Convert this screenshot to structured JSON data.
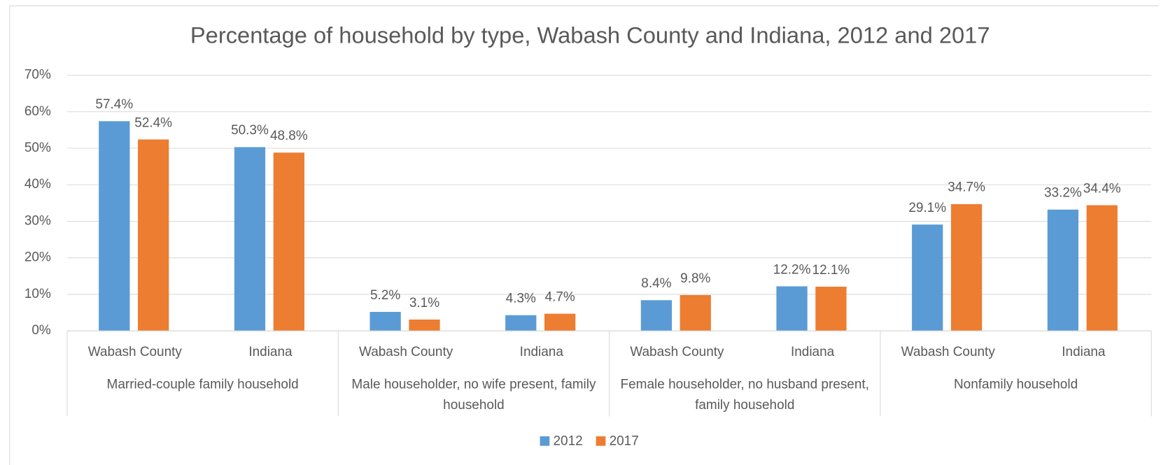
{
  "chart_data": {
    "type": "bar",
    "title": "Percentage of household by type, Wabash County and Indiana, 2012 and 2017",
    "categories": [
      "Wabash County",
      "Indiana",
      "Wabash County",
      "Indiana",
      "Wabash County",
      "Indiana",
      "Wabash County",
      "Indiana"
    ],
    "groups": [
      "Married-couple family household",
      "Male householder, no wife present, family household",
      "Female householder, no husband present, family household",
      "Nonfamily household"
    ],
    "series": [
      {
        "name": "2012",
        "color": "#5b9bd5",
        "values": [
          57.4,
          50.3,
          5.2,
          4.3,
          8.4,
          12.2,
          29.1,
          33.2
        ],
        "value_labels": [
          "57.4%",
          "50.3%",
          "5.2%",
          "4.3%",
          "8.4%",
          "12.2%",
          "29.1%",
          "33.2%"
        ]
      },
      {
        "name": "2017",
        "color": "#ed7d31",
        "values": [
          52.4,
          48.8,
          3.1,
          4.7,
          9.8,
          12.1,
          34.7,
          34.4
        ],
        "value_labels": [
          "52.4%",
          "48.8%",
          "3.1%",
          "4.7%",
          "9.8%",
          "12.1%",
          "34.7%",
          "34.4%"
        ]
      }
    ],
    "ylim": [
      0,
      70
    ],
    "yticks": [
      {
        "value": 0,
        "label": "0%"
      },
      {
        "value": 10,
        "label": "10%"
      },
      {
        "value": 20,
        "label": "20%"
      },
      {
        "value": 30,
        "label": "30%"
      },
      {
        "value": 40,
        "label": "40%"
      },
      {
        "value": 50,
        "label": "50%"
      },
      {
        "value": 60,
        "label": "60%"
      },
      {
        "value": 70,
        "label": "70%"
      }
    ],
    "grid": true,
    "legend": "bottom"
  }
}
